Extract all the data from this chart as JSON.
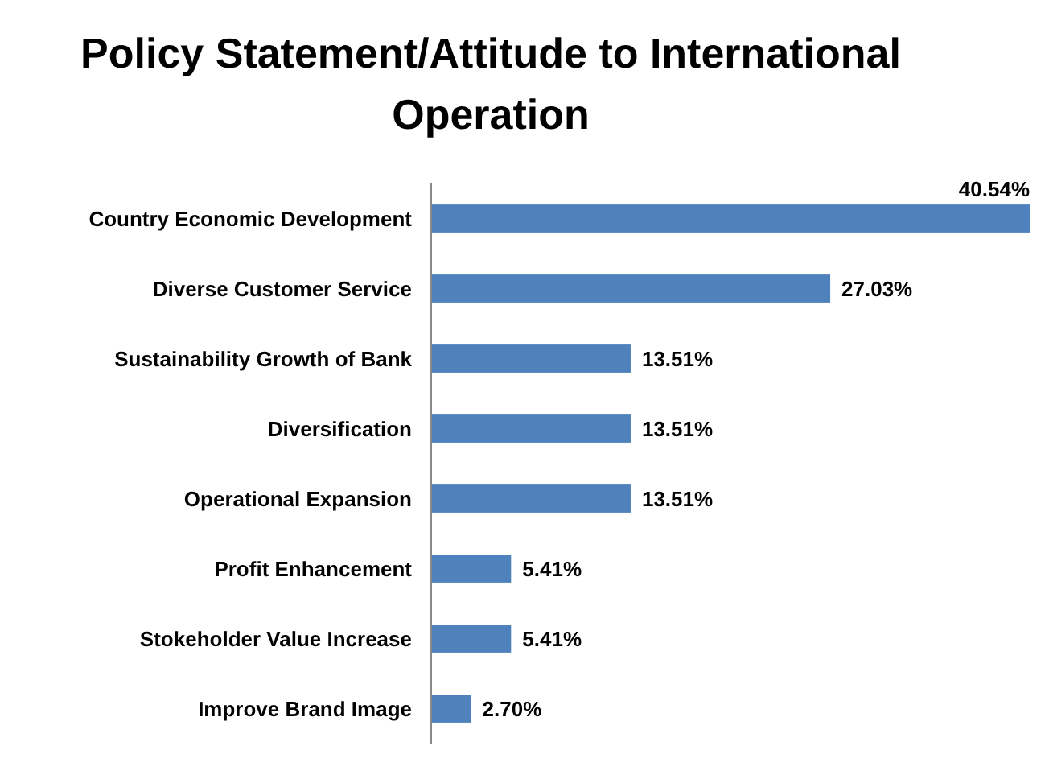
{
  "chart_data": {
    "type": "bar",
    "orientation": "horizontal",
    "title": "Policy Statement/Attitude to International Operation",
    "categories": [
      "Country Economic Development",
      "Diverse Customer Service",
      "Sustainability Growth of Bank",
      "Diversification",
      "Operational Expansion",
      "Profit Enhancement",
      "Stokeholder Value Increase",
      "Improve Brand Image"
    ],
    "values": [
      40.54,
      27.03,
      13.51,
      13.51,
      13.51,
      5.41,
      5.41,
      2.7
    ],
    "value_labels": [
      "40.54%",
      "27.03%",
      "13.51%",
      "13.51%",
      "13.51%",
      "5.41%",
      "5.41%",
      "2.70%"
    ],
    "color": "#4f81bd"
  }
}
